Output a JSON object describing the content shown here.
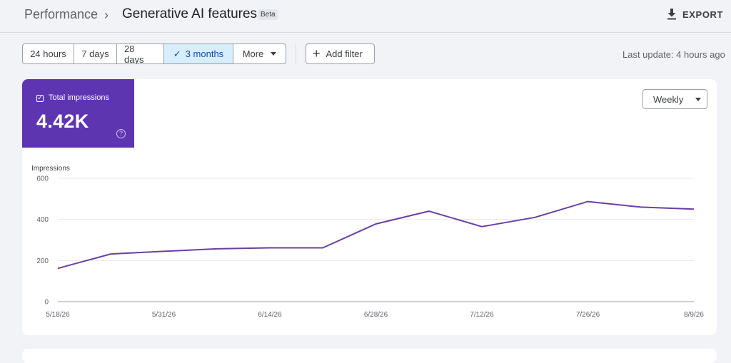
{
  "breadcrumb": {
    "root": "Performance",
    "separator": "›",
    "current": "Generative AI features",
    "badge": "Beta"
  },
  "header": {
    "export_label": "EXPORT",
    "export_icon": "download-icon"
  },
  "toolbar": {
    "ranges": [
      {
        "label": "24 hours",
        "selected": false
      },
      {
        "label": "7 days",
        "selected": false
      },
      {
        "label": "28 days",
        "selected": false
      },
      {
        "label": "3 months",
        "selected": true
      },
      {
        "label": "More",
        "selected": false
      }
    ],
    "add_filter_label": "Add filter",
    "last_update": "Last update: 4 hours ago"
  },
  "metric": {
    "label": "Total impressions",
    "value": "4.42K",
    "checked": true,
    "color": "#5e35b1"
  },
  "period_select": {
    "value": "Weekly"
  },
  "chart_data": {
    "type": "line",
    "ylabel": "Impressions",
    "xlabel": "",
    "ylim": [
      0,
      600
    ],
    "yticks": [
      0,
      200,
      400,
      600
    ],
    "x": [
      "5/18/26",
      "5/25/26",
      "5/31/26",
      "6/7/26",
      "6/14/26",
      "6/21/26",
      "6/28/26",
      "7/5/26",
      "7/12/26",
      "7/19/26",
      "7/26/26",
      "8/2/26",
      "8/9/26"
    ],
    "xtick_labels": [
      "5/18/26",
      "5/31/26",
      "6/14/26",
      "6/28/26",
      "7/12/26",
      "7/26/26",
      "8/9/26"
    ],
    "series": [
      {
        "color": "#6a3fa3",
        "values": [
          162,
          232,
          245,
          257,
          262,
          262,
          378,
          440,
          365,
          410,
          487,
          460,
          450
        ]
      }
    ],
    "grid": true
  }
}
